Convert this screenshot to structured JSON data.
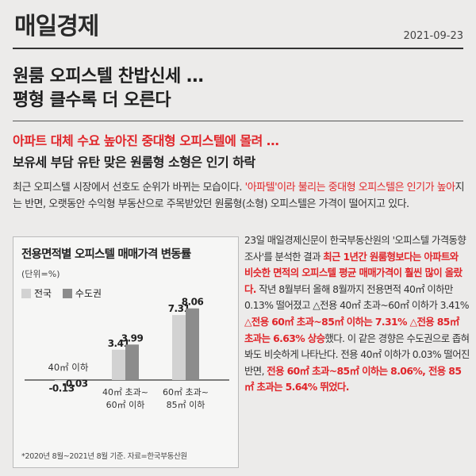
{
  "header": {
    "masthead": "매일경제",
    "date": "2021-09-23"
  },
  "headline": {
    "line1": "원룸 오피스텔 찬밥신세 …",
    "line2": "평형 클수록 더 오른다"
  },
  "subheads": {
    "line1": "아파트 대체 수요 높아진 중대형 오피스텔에 몰려 …",
    "line2": "보유세 부담 유탄 맞은 원룸형 소형은 인기 하락"
  },
  "lede": {
    "p1": "최근 오피스텔 시장에서 선호도 순위가 바뀌는 모습이다. ",
    "p2_red": "'아파텔'이라 불리는 중대형 오피스텔은 인기가 높아",
    "p3": "지는 반면, 오랫동안 수익형 부동산으로 주목받았던 원룸형(소형) 오피스텔은 가격이 떨어지고 있다."
  },
  "chart_data": {
    "type": "bar",
    "title": "전용면적별 오피스텔 매매가격 변동률",
    "unit": "(단위=%)",
    "categories": [
      {
        "line1": "40㎡ 이하",
        "line2": ""
      },
      {
        "line1": "40㎡ 초과~",
        "line2": "60㎡ 이하"
      },
      {
        "line1": "60㎡ 초과~",
        "line2": "85㎡ 이하"
      }
    ],
    "series": [
      {
        "name": "전국",
        "values": [
          -0.13,
          3.41,
          7.31
        ],
        "labels": [
          "-0.13",
          "3.41",
          "7.31"
        ],
        "color": "#d2d2d2"
      },
      {
        "name": "수도권",
        "values": [
          -0.03,
          3.99,
          8.06
        ],
        "labels": [
          "-0.03",
          "3.99",
          "8.06"
        ],
        "color": "#8c8c8c"
      }
    ],
    "ylim": [
      -0.5,
      8.5
    ],
    "note": "*2020년 8월~2021년 8월 기준. 자료=한국부동산원"
  },
  "body": {
    "t1": "23일 매일경제신문이 한국부동산원의 '오피스텔 가격동향 조사'를 분석한 결과 ",
    "r1": "최근 1년간 원룸형보다는 아파트와 비슷한 면적의 오피스텔 평균 매매가격이 훨씬 많이 올랐다.",
    "t2": " 작년 8월부터 올해 8월까지 전용면적 40㎡ 이하만 0.13% 떨어졌고 △전용 40㎡ 초과~60㎡ 이하가 3.41% ",
    "r2": "△전용 60㎡ 초과~85㎡ 이하는 7.31% △전용 85㎡ 초과는 6.63% 상승",
    "t3": "했다. 이 같은 경향은 수도권으로 좁혀 봐도 비슷하게 나타난다. 전용 40㎡ 이하가 0.03% 떨어진 반면, ",
    "r3": "전용 60㎡ 초과~85㎡ 이하는 8.06%, 전용 85㎡ 초과는 5.64% 뛰었다."
  }
}
